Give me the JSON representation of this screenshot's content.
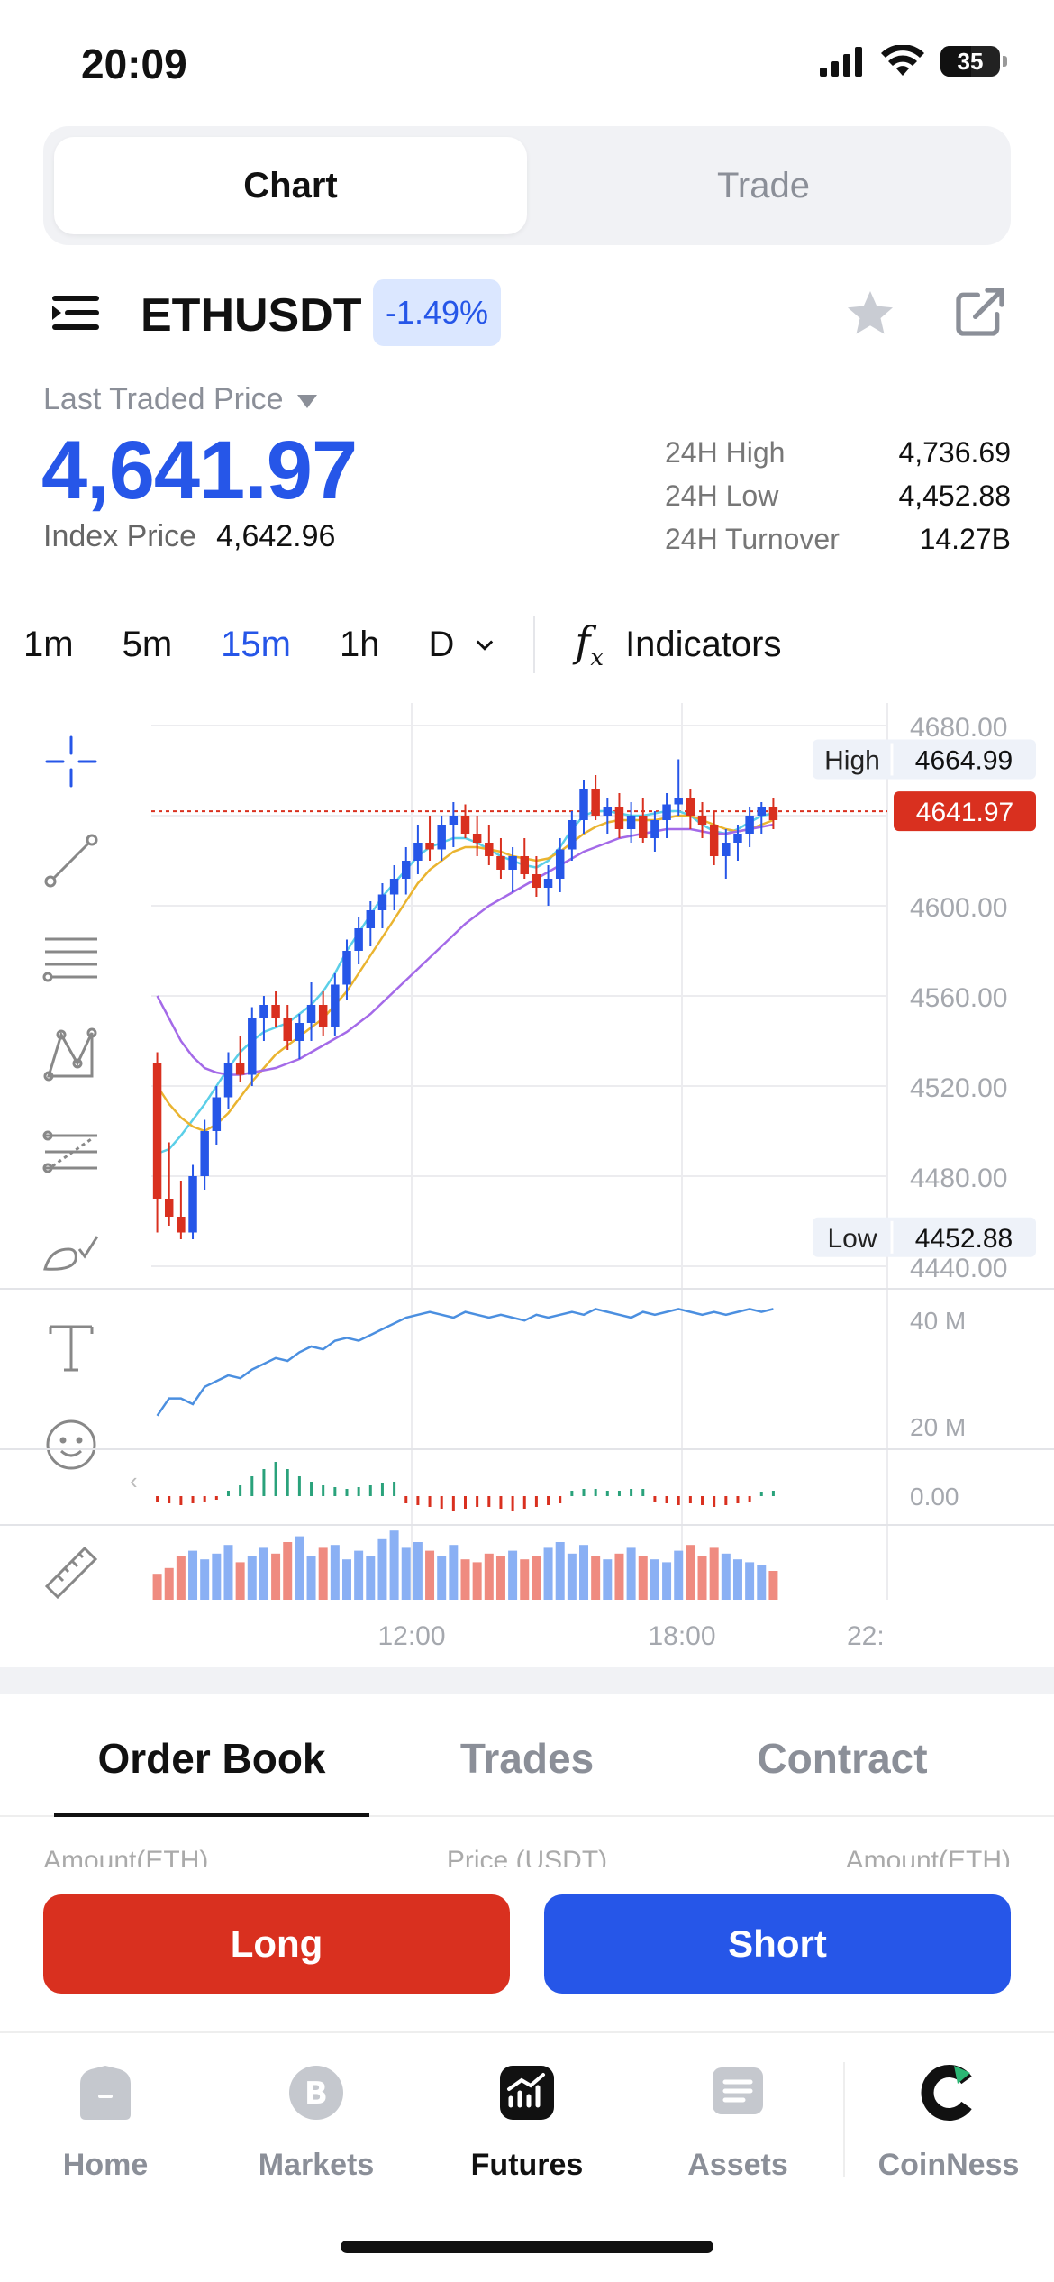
{
  "status": {
    "time": "20:09",
    "battery": "35"
  },
  "segmented": {
    "chart": "Chart",
    "trade": "Trade"
  },
  "symbol": {
    "name": "ETHUSDT",
    "change": "-1.49%"
  },
  "price": {
    "last_label": "Last Traded Price",
    "last": "4,641.97",
    "index_label": "Index Price",
    "index": "4,642.96",
    "stats": [
      {
        "label": "24H High",
        "value": "4,736.69"
      },
      {
        "label": "24H Low",
        "value": "4,452.88"
      },
      {
        "label": "24H Turnover",
        "value": "14.27B"
      }
    ]
  },
  "timeframes": {
    "items": [
      "1m",
      "5m",
      "15m",
      "1h",
      "D"
    ],
    "active": "15m",
    "indicators": "Indicators"
  },
  "chart_data": {
    "type": "candlestick",
    "y_ticks": [
      "4680.00",
      "4600.00",
      "4560.00",
      "4520.00",
      "4480.00",
      "4440.00"
    ],
    "y_range": [
      4440,
      4680
    ],
    "x_ticks": [
      "12:00",
      "18:00",
      "22:"
    ],
    "high_label": "High",
    "high_value": "4664.99",
    "low_label": "Low",
    "low_value": "4452.88",
    "current_price": "4641.97",
    "volume_ticks": [
      "40 M",
      "20 M"
    ],
    "macd_tick": "0.00",
    "candles": [
      [
        4530,
        4535,
        4455,
        4470
      ],
      [
        4470,
        4495,
        4458,
        4462
      ],
      [
        4462,
        4478,
        4452,
        4455
      ],
      [
        4455,
        4485,
        4452,
        4480
      ],
      [
        4480,
        4505,
        4474,
        4500
      ],
      [
        4500,
        4520,
        4494,
        4515
      ],
      [
        4515,
        4535,
        4510,
        4530
      ],
      [
        4530,
        4542,
        4522,
        4525
      ],
      [
        4525,
        4555,
        4520,
        4550
      ],
      [
        4550,
        4560,
        4540,
        4556
      ],
      [
        4556,
        4562,
        4546,
        4550
      ],
      [
        4550,
        4556,
        4536,
        4540
      ],
      [
        4540,
        4552,
        4532,
        4548
      ],
      [
        4548,
        4566,
        4540,
        4556
      ],
      [
        4556,
        4562,
        4542,
        4546
      ],
      [
        4546,
        4570,
        4542,
        4565
      ],
      [
        4565,
        4585,
        4558,
        4580
      ],
      [
        4580,
        4595,
        4574,
        4590
      ],
      [
        4590,
        4602,
        4582,
        4598
      ],
      [
        4598,
        4610,
        4590,
        4605
      ],
      [
        4605,
        4618,
        4598,
        4612
      ],
      [
        4612,
        4626,
        4605,
        4620
      ],
      [
        4620,
        4636,
        4614,
        4628
      ],
      [
        4628,
        4640,
        4620,
        4625
      ],
      [
        4625,
        4640,
        4620,
        4636
      ],
      [
        4636,
        4646,
        4626,
        4640
      ],
      [
        4640,
        4645,
        4630,
        4632
      ],
      [
        4632,
        4640,
        4622,
        4628
      ],
      [
        4628,
        4636,
        4618,
        4622
      ],
      [
        4622,
        4630,
        4612,
        4616
      ],
      [
        4616,
        4626,
        4606,
        4622
      ],
      [
        4622,
        4630,
        4612,
        4614
      ],
      [
        4614,
        4622,
        4604,
        4608
      ],
      [
        4608,
        4618,
        4600,
        4612
      ],
      [
        4612,
        4630,
        4606,
        4625
      ],
      [
        4625,
        4642,
        4620,
        4638
      ],
      [
        4638,
        4656,
        4632,
        4652
      ],
      [
        4652,
        4658,
        4638,
        4640
      ],
      [
        4640,
        4648,
        4632,
        4644
      ],
      [
        4644,
        4650,
        4630,
        4634
      ],
      [
        4634,
        4646,
        4628,
        4640
      ],
      [
        4640,
        4648,
        4628,
        4630
      ],
      [
        4630,
        4642,
        4624,
        4638
      ],
      [
        4638,
        4650,
        4630,
        4645
      ],
      [
        4645,
        4665,
        4640,
        4648
      ],
      [
        4648,
        4652,
        4634,
        4640
      ],
      [
        4640,
        4646,
        4630,
        4636
      ],
      [
        4636,
        4642,
        4618,
        4622
      ],
      [
        4622,
        4634,
        4612,
        4628
      ],
      [
        4628,
        4636,
        4620,
        4632
      ],
      [
        4632,
        4644,
        4626,
        4640
      ],
      [
        4640,
        4646,
        4632,
        4644
      ],
      [
        4644,
        4648,
        4634,
        4638
      ]
    ],
    "ma_lines": {
      "cyan": [
        4490,
        4492,
        4498,
        4505,
        4512,
        4520,
        4528,
        4535,
        4540,
        4544,
        4546,
        4548,
        4552,
        4556,
        4562,
        4570,
        4580,
        4588,
        4596,
        4604,
        4610,
        4616,
        4622,
        4626,
        4628,
        4630,
        4630,
        4628,
        4625,
        4622,
        4620,
        4618,
        4617,
        4620,
        4626,
        4634,
        4640,
        4642,
        4642,
        4641,
        4640,
        4640,
        4641,
        4642,
        4642,
        4640,
        4636,
        4633,
        4632,
        4634,
        4637,
        4640,
        4641
      ],
      "yellow": [
        4520,
        4512,
        4506,
        4502,
        4500,
        4503,
        4508,
        4515,
        4522,
        4528,
        4534,
        4538,
        4542,
        4546,
        4550,
        4556,
        4562,
        4570,
        4578,
        4586,
        4594,
        4602,
        4610,
        4616,
        4620,
        4624,
        4626,
        4626,
        4625,
        4624,
        4622,
        4621,
        4620,
        4621,
        4624,
        4628,
        4632,
        4635,
        4637,
        4638,
        4638,
        4638,
        4638,
        4639,
        4640,
        4640,
        4638,
        4636,
        4634,
        4633,
        4634,
        4636,
        4638
      ],
      "purple": [
        4560,
        4550,
        4540,
        4533,
        4528,
        4526,
        4525,
        4525,
        4526,
        4527,
        4528,
        4530,
        4532,
        4535,
        4538,
        4541,
        4544,
        4548,
        4552,
        4557,
        4562,
        4567,
        4572,
        4577,
        4582,
        4587,
        4592,
        4596,
        4600,
        4603,
        4606,
        4609,
        4612,
        4615,
        4618,
        4621,
        4624,
        4626,
        4628,
        4630,
        4631,
        4632,
        4633,
        4634,
        4634,
        4634,
        4633,
        4632,
        4632,
        4633,
        4634,
        4635,
        4636
      ]
    }
  },
  "orderbook": {
    "tabs": [
      "Order Book",
      "Trades",
      "Contract"
    ],
    "headers": [
      "Amount(ETH)",
      "Price (USDT)",
      "Amount(ETH)"
    ]
  },
  "actions": {
    "long": "Long",
    "short": "Short"
  },
  "nav": {
    "items": [
      "Home",
      "Markets",
      "Futures",
      "Assets",
      "CoinNess"
    ],
    "active": "Futures"
  }
}
